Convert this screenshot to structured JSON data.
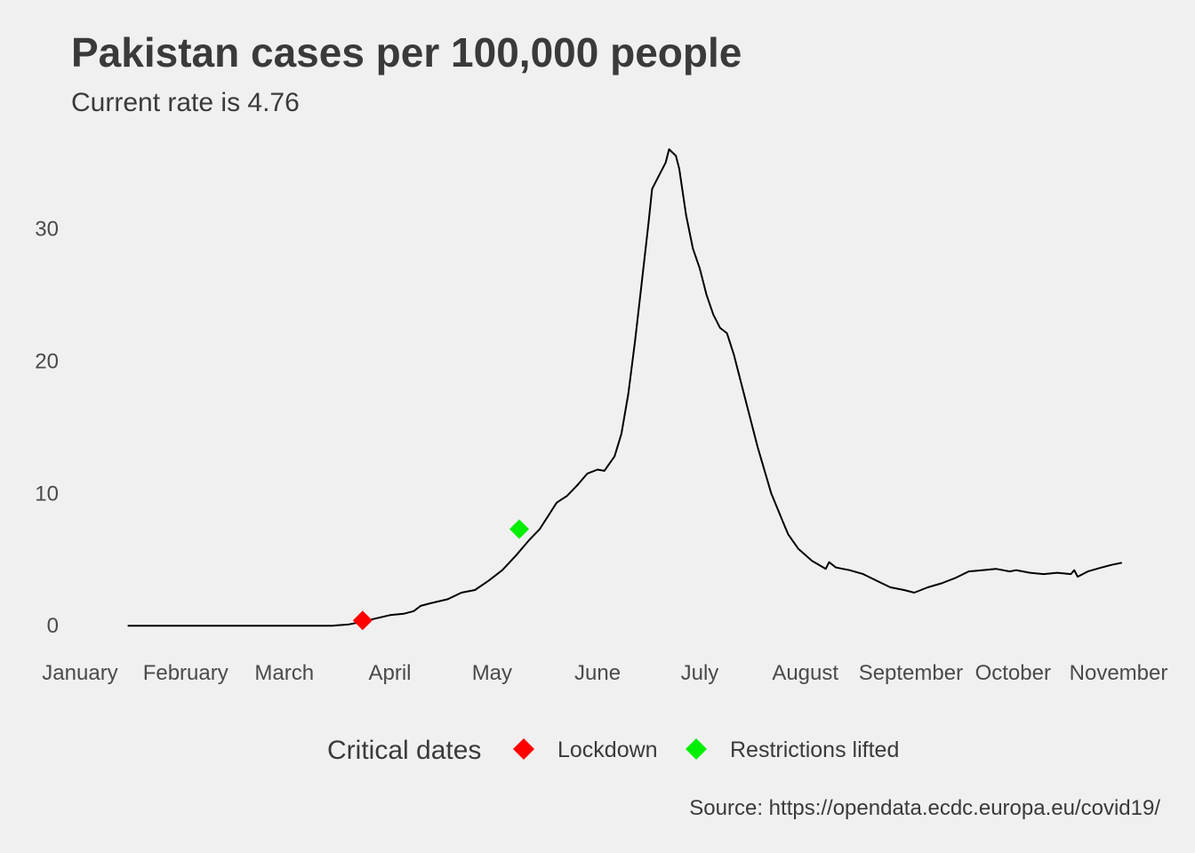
{
  "chart_data": {
    "type": "line",
    "title": "Pakistan cases per 100,000 people",
    "subtitle": "Current rate is  4.76",
    "source": "Source: https://opendata.ecdc.europa.eu/covid19/",
    "xlabel": "",
    "ylabel": "",
    "x_range": [
      "2020-01-01",
      "2020-11-15"
    ],
    "ylim": [
      -2,
      36
    ],
    "y_ticks": [
      0,
      10,
      20,
      30
    ],
    "x_ticks": [
      {
        "date": "2020-01-01",
        "label": "January"
      },
      {
        "date": "2020-02-01",
        "label": "February"
      },
      {
        "date": "2020-03-01",
        "label": "March"
      },
      {
        "date": "2020-04-01",
        "label": "April"
      },
      {
        "date": "2020-05-01",
        "label": "May"
      },
      {
        "date": "2020-06-01",
        "label": "June"
      },
      {
        "date": "2020-07-01",
        "label": "July"
      },
      {
        "date": "2020-08-01",
        "label": "August"
      },
      {
        "date": "2020-09-01",
        "label": "September"
      },
      {
        "date": "2020-10-01",
        "label": "October"
      },
      {
        "date": "2020-11-01",
        "label": "November"
      }
    ],
    "grid": false,
    "line_color": "#000000",
    "series": [
      {
        "points": [
          [
            "2020-01-15",
            0
          ],
          [
            "2020-02-15",
            0
          ],
          [
            "2020-03-01",
            0
          ],
          [
            "2020-03-15",
            0
          ],
          [
            "2020-03-20",
            0.1
          ],
          [
            "2020-03-24",
            0.3
          ],
          [
            "2020-03-27",
            0.5
          ],
          [
            "2020-04-01",
            0.8
          ],
          [
            "2020-04-05",
            0.9
          ],
          [
            "2020-04-08",
            1.1
          ],
          [
            "2020-04-10",
            1.5
          ],
          [
            "2020-04-13",
            1.7
          ],
          [
            "2020-04-18",
            2.0
          ],
          [
            "2020-04-22",
            2.5
          ],
          [
            "2020-04-26",
            2.7
          ],
          [
            "2020-04-30",
            3.4
          ],
          [
            "2020-05-04",
            4.2
          ],
          [
            "2020-05-08",
            5.3
          ],
          [
            "2020-05-12",
            6.5
          ],
          [
            "2020-05-15",
            7.3
          ],
          [
            "2020-05-18",
            8.5
          ],
          [
            "2020-05-20",
            9.3
          ],
          [
            "2020-05-23",
            9.8
          ],
          [
            "2020-05-26",
            10.6
          ],
          [
            "2020-05-29",
            11.5
          ],
          [
            "2020-06-01",
            11.8
          ],
          [
            "2020-06-03",
            11.7
          ],
          [
            "2020-06-06",
            12.8
          ],
          [
            "2020-06-08",
            14.5
          ],
          [
            "2020-06-10",
            17.5
          ],
          [
            "2020-06-12",
            21.5
          ],
          [
            "2020-06-14",
            26.0
          ],
          [
            "2020-06-16",
            30.5
          ],
          [
            "2020-06-17",
            33.0
          ],
          [
            "2020-06-19",
            34.0
          ],
          [
            "2020-06-21",
            35.0
          ],
          [
            "2020-06-22",
            36.0
          ],
          [
            "2020-06-24",
            35.5
          ],
          [
            "2020-06-25",
            34.5
          ],
          [
            "2020-06-27",
            31.0
          ],
          [
            "2020-06-29",
            28.5
          ],
          [
            "2020-07-01",
            27.0
          ],
          [
            "2020-07-03",
            25.0
          ],
          [
            "2020-07-05",
            23.5
          ],
          [
            "2020-07-07",
            22.5
          ],
          [
            "2020-07-09",
            22.1
          ],
          [
            "2020-07-11",
            20.5
          ],
          [
            "2020-07-14",
            17.5
          ],
          [
            "2020-07-18",
            13.5
          ],
          [
            "2020-07-22",
            10.0
          ],
          [
            "2020-07-26",
            7.5
          ],
          [
            "2020-07-27",
            6.9
          ],
          [
            "2020-07-30",
            5.8
          ],
          [
            "2020-08-03",
            4.9
          ],
          [
            "2020-08-07",
            4.3
          ],
          [
            "2020-08-08",
            4.8
          ],
          [
            "2020-08-10",
            4.4
          ],
          [
            "2020-08-14",
            4.2
          ],
          [
            "2020-08-18",
            3.9
          ],
          [
            "2020-08-22",
            3.4
          ],
          [
            "2020-08-26",
            2.9
          ],
          [
            "2020-08-30",
            2.7
          ],
          [
            "2020-09-02",
            2.5
          ],
          [
            "2020-09-06",
            2.9
          ],
          [
            "2020-09-10",
            3.2
          ],
          [
            "2020-09-14",
            3.6
          ],
          [
            "2020-09-18",
            4.1
          ],
          [
            "2020-09-22",
            4.2
          ],
          [
            "2020-09-26",
            4.3
          ],
          [
            "2020-09-30",
            4.1
          ],
          [
            "2020-10-02",
            4.2
          ],
          [
            "2020-10-06",
            4.0
          ],
          [
            "2020-10-10",
            3.9
          ],
          [
            "2020-10-14",
            4.0
          ],
          [
            "2020-10-18",
            3.9
          ],
          [
            "2020-10-19",
            4.2
          ],
          [
            "2020-10-20",
            3.7
          ],
          [
            "2020-10-23",
            4.1
          ],
          [
            "2020-10-27",
            4.4
          ],
          [
            "2020-10-30",
            4.6
          ],
          [
            "2020-11-02",
            4.76
          ]
        ]
      }
    ],
    "markers": [
      {
        "date": "2020-03-24",
        "value": 0.4,
        "label": "Lockdown",
        "color": "#ff0000"
      },
      {
        "date": "2020-05-09",
        "value": 7.3,
        "label": "Restrictions lifted",
        "color": "#00ee00"
      }
    ],
    "legend": {
      "title": "Critical dates",
      "position": "bottom",
      "items": [
        {
          "label": "Lockdown",
          "color": "#ff0000"
        },
        {
          "label": "Restrictions lifted",
          "color": "#00ee00"
        }
      ]
    }
  }
}
